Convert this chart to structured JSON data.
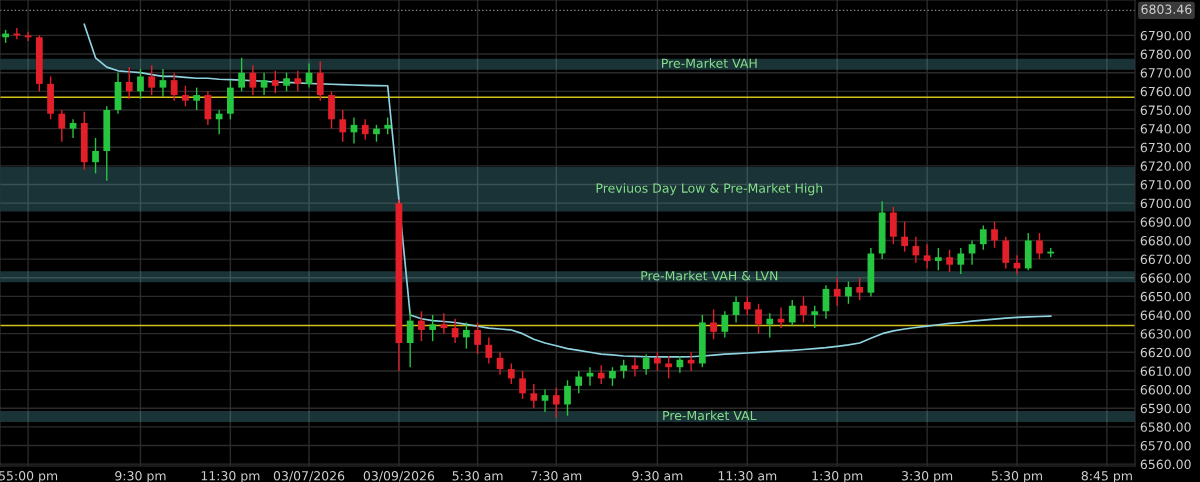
{
  "chart_data": {
    "type": "candlestick",
    "categories": [
      null,
      null,
      "55:00 pm",
      null,
      null,
      null,
      null,
      null,
      null,
      null,
      null,
      null,
      "9:30 pm",
      null,
      null,
      null,
      null,
      null,
      null,
      null,
      "11:30 pm",
      null,
      null,
      null,
      null,
      null,
      null,
      "03/07/2026",
      null,
      null,
      null,
      null,
      null,
      null,
      null,
      "03/09/2026",
      null,
      null,
      null,
      null,
      null,
      null,
      "5:30 am",
      null,
      null,
      null,
      null,
      null,
      null,
      "7:30 am",
      null,
      null,
      null,
      null,
      null,
      null,
      null,
      null,
      "9:30 am",
      null,
      null,
      null,
      null,
      null,
      null,
      null,
      "11:30 am",
      null,
      null,
      null,
      null,
      null,
      null,
      null,
      "1:30 pm",
      null,
      null,
      null,
      null,
      null,
      null,
      null,
      "3:30 pm",
      null,
      null,
      null,
      null,
      null,
      null,
      null,
      "5:30 pm",
      null,
      null,
      null,
      null,
      null,
      null,
      null,
      "8:45 pm",
      null,
      null
    ],
    "ohlc": [
      [
        6789,
        6793,
        6786,
        6791
      ],
      [
        6791,
        6794,
        6788,
        6790
      ],
      [
        6790,
        6792,
        6787,
        6789
      ],
      [
        6789,
        6790,
        6760,
        6764
      ],
      [
        6764,
        6768,
        6745,
        6748
      ],
      [
        6748,
        6750,
        6733,
        6740
      ],
      [
        6740,
        6745,
        6735,
        6743
      ],
      [
        6743,
        6749,
        6718,
        6722
      ],
      [
        6722,
        6735,
        6716,
        6728
      ],
      [
        6728,
        6752,
        6712,
        6750
      ],
      [
        6750,
        6770,
        6748,
        6765
      ],
      [
        6765,
        6773,
        6756,
        6760
      ],
      [
        6760,
        6772,
        6756,
        6768
      ],
      [
        6768,
        6774,
        6758,
        6762
      ],
      [
        6762,
        6772,
        6757,
        6766
      ],
      [
        6766,
        6770,
        6755,
        6758
      ],
      [
        6758,
        6763,
        6752,
        6755
      ],
      [
        6755,
        6762,
        6750,
        6758
      ],
      [
        6758,
        6760,
        6742,
        6745
      ],
      [
        6745,
        6750,
        6737,
        6748
      ],
      [
        6748,
        6766,
        6745,
        6762
      ],
      [
        6762,
        6778,
        6760,
        6770
      ],
      [
        6770,
        6774,
        6758,
        6762
      ],
      [
        6762,
        6770,
        6758,
        6766
      ],
      [
        6766,
        6771,
        6759,
        6763
      ],
      [
        6763,
        6770,
        6760,
        6767
      ],
      [
        6767,
        6771,
        6760,
        6764
      ],
      [
        6764,
        6775,
        6762,
        6770
      ],
      [
        6770,
        6776,
        6755,
        6758
      ],
      [
        6758,
        6760,
        6740,
        6745
      ],
      [
        6745,
        6750,
        6733,
        6738
      ],
      [
        6738,
        6746,
        6732,
        6742
      ],
      [
        6742,
        6745,
        6734,
        6737
      ],
      [
        6737,
        6742,
        6733,
        6740
      ],
      [
        6740,
        6746,
        6737,
        6742
      ],
      [
        6700,
        6702,
        6610,
        6625
      ],
      [
        6625,
        6642,
        6612,
        6637
      ],
      [
        6637,
        6642,
        6626,
        6632
      ],
      [
        6632,
        6640,
        6626,
        6635
      ],
      [
        6635,
        6641,
        6630,
        6633
      ],
      [
        6633,
        6638,
        6625,
        6628
      ],
      [
        6628,
        6636,
        6622,
        6632
      ],
      [
        6632,
        6636,
        6619,
        6624
      ],
      [
        6624,
        6628,
        6614,
        6617
      ],
      [
        6617,
        6620,
        6608,
        6611
      ],
      [
        6611,
        6614,
        6603,
        6606
      ],
      [
        6606,
        6610,
        6595,
        6598
      ],
      [
        6598,
        6603,
        6590,
        6594
      ],
      [
        6594,
        6600,
        6588,
        6597
      ],
      [
        6597,
        6601,
        6585,
        6592
      ],
      [
        6592,
        6605,
        6586,
        6602
      ],
      [
        6602,
        6610,
        6598,
        6607
      ],
      [
        6607,
        6612,
        6602,
        6609
      ],
      [
        6609,
        6613,
        6603,
        6606
      ],
      [
        6606,
        6612,
        6602,
        6610
      ],
      [
        6610,
        6616,
        6606,
        6613
      ],
      [
        6613,
        6617,
        6607,
        6611
      ],
      [
        6611,
        6619,
        6608,
        6617
      ],
      [
        6617,
        6620,
        6610,
        6614
      ],
      [
        6614,
        6618,
        6606,
        6612
      ],
      [
        6612,
        6618,
        6609,
        6616
      ],
      [
        6616,
        6620,
        6610,
        6614
      ],
      [
        6614,
        6640,
        6612,
        6636
      ],
      [
        6636,
        6643,
        6627,
        6631
      ],
      [
        6631,
        6642,
        6628,
        6640
      ],
      [
        6640,
        6650,
        6636,
        6647
      ],
      [
        6647,
        6650,
        6640,
        6643
      ],
      [
        6643,
        6646,
        6630,
        6635
      ],
      [
        6635,
        6641,
        6628,
        6638
      ],
      [
        6638,
        6644,
        6633,
        6636
      ],
      [
        6636,
        6648,
        6634,
        6645
      ],
      [
        6645,
        6650,
        6636,
        6640
      ],
      [
        6640,
        6645,
        6633,
        6642
      ],
      [
        6642,
        6656,
        6638,
        6654
      ],
      [
        6654,
        6660,
        6645,
        6650
      ],
      [
        6650,
        6658,
        6646,
        6655
      ],
      [
        6655,
        6660,
        6648,
        6652
      ],
      [
        6652,
        6676,
        6650,
        6673
      ],
      [
        6673,
        6701,
        6670,
        6695
      ],
      [
        6695,
        6698,
        6678,
        6682
      ],
      [
        6682,
        6690,
        6674,
        6677
      ],
      [
        6677,
        6682,
        6668,
        6672
      ],
      [
        6672,
        6678,
        6665,
        6669
      ],
      [
        6669,
        6676,
        6664,
        6671
      ],
      [
        6671,
        6675,
        6663,
        6667
      ],
      [
        6667,
        6676,
        6662,
        6673
      ],
      [
        6673,
        6680,
        6667,
        6678
      ],
      [
        6678,
        6688,
        6675,
        6686
      ],
      [
        6686,
        6690,
        6676,
        6680
      ],
      [
        6680,
        6682,
        6665,
        6668
      ],
      [
        6668,
        6672,
        6662,
        6665
      ],
      [
        6665,
        6684,
        6664,
        6680
      ],
      [
        6680,
        6684,
        6670,
        6673
      ],
      [
        6673,
        6676,
        6671,
        6674
      ],
      null,
      null,
      null,
      null,
      null,
      null,
      null
    ],
    "series": [
      {
        "type": "line",
        "color": "#8fd3e0",
        "values": [
          null,
          null,
          null,
          null,
          null,
          null,
          null,
          6796,
          6778,
          6773,
          6771,
          6770.5,
          6770,
          6769,
          6768,
          6768,
          6767.5,
          6767,
          6767,
          6766.5,
          6766.3,
          6766,
          6765.7,
          6765.4,
          6765,
          6764.8,
          6764.5,
          6764.2,
          6764,
          6763.8,
          6763.6,
          6763.4,
          6763.2,
          6763.1,
          6763,
          null,
          6640,
          6638,
          6637,
          6636.5,
          6636,
          6635,
          6634,
          6633,
          6632.5,
          6632,
          6630,
          6627,
          6625,
          6623.5,
          6622,
          6621,
          6620,
          6619,
          6618.6,
          6618,
          6617.8,
          6617.6,
          6617.5,
          6617.5,
          6617.5,
          6617.6,
          6618,
          6618.5,
          6619,
          6619.3,
          6619.6,
          6620,
          6620.4,
          6620.8,
          6621,
          6621.5,
          6622,
          6622.5,
          6623.2,
          6624,
          6625,
          6627.5,
          6630,
          6631.5,
          6632.5,
          6633.3,
          6634,
          6634.8,
          6635.5,
          6636,
          6636.7,
          6637.3,
          6637.8,
          6638.3,
          6638.7,
          6639,
          6639.2,
          6639.4,
          null,
          null,
          null,
          null,
          null,
          null,
          null
        ]
      }
    ],
    "ylim": [
      6559,
      6809
    ],
    "yticks": [
      {
        "value": 6560,
        "label": "6560.00"
      },
      {
        "value": 6570,
        "label": "6570.00"
      },
      {
        "value": 6580,
        "label": "6580.00"
      },
      {
        "value": 6590,
        "label": "6590.00"
      },
      {
        "value": 6600,
        "label": "6600.00"
      },
      {
        "value": 6610,
        "label": "6610.00"
      },
      {
        "value": 6620,
        "label": "6620.00"
      },
      {
        "value": 6630,
        "label": "6630.00"
      },
      {
        "value": 6640,
        "label": "6640.00"
      },
      {
        "value": 6650,
        "label": "6650.00"
      },
      {
        "value": 6660,
        "label": "6660.00"
      },
      {
        "value": 6670,
        "label": "6670.00"
      },
      {
        "value": 6680,
        "label": "6680.00"
      },
      {
        "value": 6690,
        "label": "6690.00"
      },
      {
        "value": 6700,
        "label": "6700.00"
      },
      {
        "value": 6710,
        "label": "6710.00"
      },
      {
        "value": 6720,
        "label": "6720.00"
      },
      {
        "value": 6730,
        "label": "6730.00"
      },
      {
        "value": 6740,
        "label": "6740.00"
      },
      {
        "value": 6750,
        "label": "6750.00"
      },
      {
        "value": 6760,
        "label": "6760.00"
      },
      {
        "value": 6770,
        "label": "6770.00"
      },
      {
        "value": 6780,
        "label": "6780.00"
      },
      {
        "value": 6790,
        "label": "6790.00"
      }
    ],
    "bands": [
      {
        "axis": "y",
        "from": 6772,
        "to": 6777,
        "label": "Pre-Market VAH",
        "color": "#5fb8c0"
      },
      {
        "axis": "y",
        "from": 6696,
        "to": 6719,
        "label": "Previuos Day Low & Pre-Market High",
        "color": "#5fb8c0"
      },
      {
        "axis": "y",
        "from": 6658,
        "to": 6663,
        "label": "Pre-Market VAH & LVN",
        "color": "#5fb8c0"
      },
      {
        "axis": "y",
        "from": 6583,
        "to": 6588,
        "label": "Pre-Market VAL",
        "color": "#5fb8c0"
      }
    ],
    "ref_lines": [
      {
        "axis": "y",
        "value": 6756.8,
        "color": "#d4c21a",
        "line_style": "solid"
      },
      {
        "axis": "y",
        "value": 6634.4,
        "color": "#d4c21a",
        "line_style": "solid"
      },
      {
        "axis": "y",
        "value": 6803.46,
        "label": "6803.46",
        "color": "#888888",
        "line_style": "dotted"
      }
    ],
    "grid": true
  }
}
